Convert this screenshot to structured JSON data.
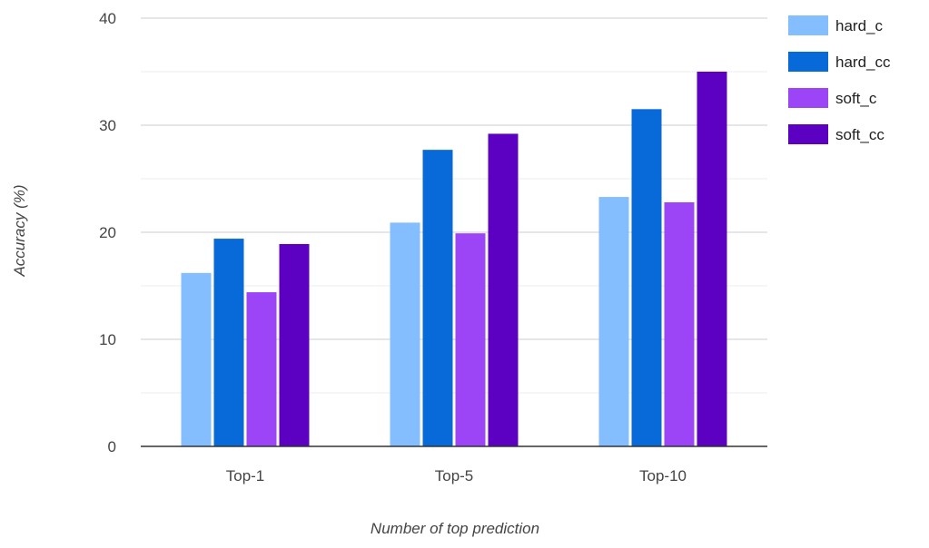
{
  "chart_data": {
    "type": "bar",
    "title": "",
    "xlabel": "Number of top prediction",
    "ylabel": "Accuracy (%)",
    "categories": [
      "Top-1",
      "Top-5",
      "Top-10"
    ],
    "ylim": [
      0,
      40
    ],
    "y_ticks": [
      "0",
      "10",
      "20",
      "30",
      "40"
    ],
    "grid": true,
    "minor_grid": true,
    "legend_position": "right",
    "series": [
      {
        "name": "hard_c",
        "color": "#84BEFF",
        "values": [
          16.2,
          20.9,
          23.3
        ]
      },
      {
        "name": "hard_cc",
        "color": "#0869D9",
        "values": [
          19.4,
          27.7,
          31.5
        ]
      },
      {
        "name": "soft_c",
        "color": "#9B45F7",
        "values": [
          14.4,
          19.9,
          22.8
        ]
      },
      {
        "name": "soft_cc",
        "color": "#5C00C2",
        "values": [
          18.9,
          29.2,
          35.0
        ]
      }
    ]
  }
}
